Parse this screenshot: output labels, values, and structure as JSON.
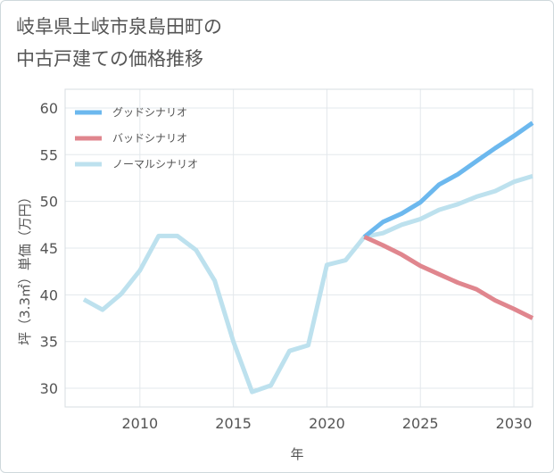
{
  "title_line1": "岐阜県土岐市泉島田町の",
  "title_line2": "中古戸建ての価格推移",
  "chart_data": {
    "type": "line",
    "xlabel": "年",
    "ylabel": "坪（3.3㎡）単価（万円）",
    "xlim": [
      2006,
      2031
    ],
    "ylim": [
      28,
      62
    ],
    "xticks": [
      2010,
      2015,
      2020,
      2025,
      2030
    ],
    "yticks": [
      30,
      35,
      40,
      45,
      50,
      55,
      60
    ],
    "legend": [
      "グッドシナリオ",
      "バッドシナリオ",
      "ノーマルシナリオ"
    ],
    "series": [
      {
        "name": "グッドシナリオ",
        "color": "#6cb8ee",
        "x": [
          2022,
          2023,
          2024,
          2025,
          2026,
          2027,
          2028,
          2029,
          2030,
          2031
        ],
        "y": [
          46.2,
          47.8,
          48.7,
          49.9,
          51.8,
          52.9,
          54.3,
          55.7,
          57.0,
          58.4
        ]
      },
      {
        "name": "バッドシナリオ",
        "color": "#e0868e",
        "x": [
          2022,
          2023,
          2024,
          2025,
          2026,
          2027,
          2028,
          2029,
          2030,
          2031
        ],
        "y": [
          46.2,
          45.3,
          44.3,
          43.1,
          42.2,
          41.3,
          40.6,
          39.4,
          38.5,
          37.5
        ]
      },
      {
        "name": "ノーマルシナリオ",
        "color": "#bde1ee",
        "x": [
          2007,
          2008,
          2009,
          2010,
          2011,
          2012,
          2013,
          2014,
          2015,
          2016,
          2017,
          2018,
          2019,
          2020,
          2021,
          2022,
          2023,
          2024,
          2025,
          2026,
          2027,
          2028,
          2029,
          2030,
          2031
        ],
        "y": [
          39.5,
          38.4,
          40.1,
          42.6,
          46.3,
          46.3,
          44.8,
          41.5,
          35.0,
          29.6,
          30.3,
          34.0,
          34.6,
          43.2,
          43.7,
          46.2,
          46.6,
          47.5,
          48.1,
          49.1,
          49.7,
          50.5,
          51.1,
          52.1,
          52.7
        ]
      }
    ]
  }
}
